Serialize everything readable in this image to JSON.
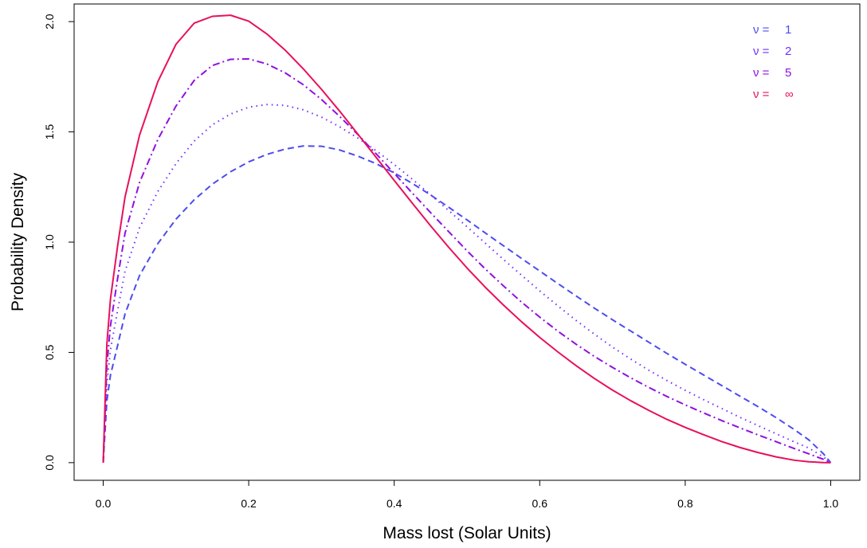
{
  "chart_data": {
    "type": "line",
    "title": "",
    "xlabel": "Mass lost (Solar Units)",
    "ylabel": "Probability Density",
    "xlim": [
      -0.04,
      1.04
    ],
    "ylim": [
      -0.08,
      2.08
    ],
    "x_ticks": [
      0.0,
      0.2,
      0.4,
      0.6,
      0.8,
      1.0
    ],
    "x_tick_labels": [
      "0.0",
      "0.2",
      "0.4",
      "0.6",
      "0.8",
      "1.0"
    ],
    "y_ticks": [
      0.0,
      0.5,
      1.0,
      1.5,
      2.0
    ],
    "y_tick_labels": [
      "0.0",
      "0.5",
      "1.0",
      "1.5",
      "2.0"
    ],
    "grid": false,
    "legend_position": "top-right",
    "x": [
      0,
      0.005,
      0.01,
      0.02,
      0.03,
      0.05,
      0.075,
      0.1,
      0.125,
      0.15,
      0.175,
      0.2,
      0.225,
      0.25,
      0.275,
      0.3,
      0.325,
      0.35,
      0.375,
      0.4,
      0.425,
      0.45,
      0.475,
      0.5,
      0.525,
      0.55,
      0.575,
      0.6,
      0.625,
      0.65,
      0.675,
      0.7,
      0.725,
      0.75,
      0.775,
      0.8,
      0.825,
      0.85,
      0.875,
      0.9,
      0.925,
      0.95,
      0.97,
      0.99,
      1.0
    ],
    "series": [
      {
        "name": "ν = 1",
        "label_prefix": "ν =",
        "label_value": "1",
        "color": "#4c4cf0",
        "dash": "8,5",
        "values": [
          0,
          0.28,
          0.397,
          0.534,
          0.675,
          0.849,
          0.993,
          1.104,
          1.192,
          1.263,
          1.319,
          1.364,
          1.398,
          1.422,
          1.436,
          1.435,
          1.418,
          1.39,
          1.356,
          1.314,
          1.266,
          1.214,
          1.158,
          1.101,
          1.042,
          0.984,
          0.926,
          0.869,
          0.812,
          0.756,
          0.701,
          0.648,
          0.597,
          0.546,
          0.495,
          0.446,
          0.398,
          0.35,
          0.302,
          0.254,
          0.204,
          0.15,
          0.103,
          0.04,
          0
        ]
      },
      {
        "name": "ν = 2",
        "label_prefix": "ν =",
        "label_value": "2",
        "color": "#7030ff",
        "dash": "1.5,5",
        "values": [
          0,
          0.36,
          0.513,
          0.694,
          0.868,
          1.066,
          1.229,
          1.356,
          1.458,
          1.532,
          1.581,
          1.612,
          1.624,
          1.62,
          1.6,
          1.567,
          1.523,
          1.472,
          1.415,
          1.352,
          1.285,
          1.215,
          1.143,
          1.07,
          0.996,
          0.922,
          0.85,
          0.779,
          0.711,
          0.645,
          0.583,
          0.524,
          0.47,
          0.419,
          0.372,
          0.328,
          0.286,
          0.246,
          0.206,
          0.168,
          0.131,
          0.094,
          0.066,
          0.026,
          0
        ]
      },
      {
        "name": "ν = 5",
        "label_prefix": "ν =",
        "label_value": "5",
        "color": "#9010e0",
        "dash": "9,4,2,4",
        "values": [
          0,
          0.44,
          0.622,
          0.84,
          1.041,
          1.271,
          1.465,
          1.617,
          1.733,
          1.801,
          1.829,
          1.831,
          1.808,
          1.768,
          1.714,
          1.647,
          1.57,
          1.488,
          1.401,
          1.312,
          1.222,
          1.134,
          1.047,
          0.961,
          0.879,
          0.802,
          0.728,
          0.66,
          0.596,
          0.537,
          0.482,
          0.432,
          0.385,
          0.341,
          0.3,
          0.262,
          0.226,
          0.191,
          0.158,
          0.126,
          0.095,
          0.064,
          0.04,
          0.015,
          0
        ]
      },
      {
        "name": "ν = ∞",
        "label_prefix": "ν =",
        "label_value": "∞",
        "color": "#e8105c",
        "dash": "",
        "values": [
          0,
          0.536,
          0.743,
          0.988,
          1.205,
          1.486,
          1.727,
          1.897,
          1.993,
          2.024,
          2.029,
          2.002,
          1.944,
          1.871,
          1.786,
          1.693,
          1.594,
          1.49,
          1.385,
          1.28,
          1.176,
          1.074,
          0.976,
          0.883,
          0.796,
          0.715,
          0.639,
          0.568,
          0.502,
          0.44,
          0.382,
          0.329,
          0.281,
          0.237,
          0.196,
          0.16,
          0.127,
          0.096,
          0.069,
          0.046,
          0.026,
          0.011,
          0.004,
          0.0005,
          0
        ]
      }
    ]
  }
}
